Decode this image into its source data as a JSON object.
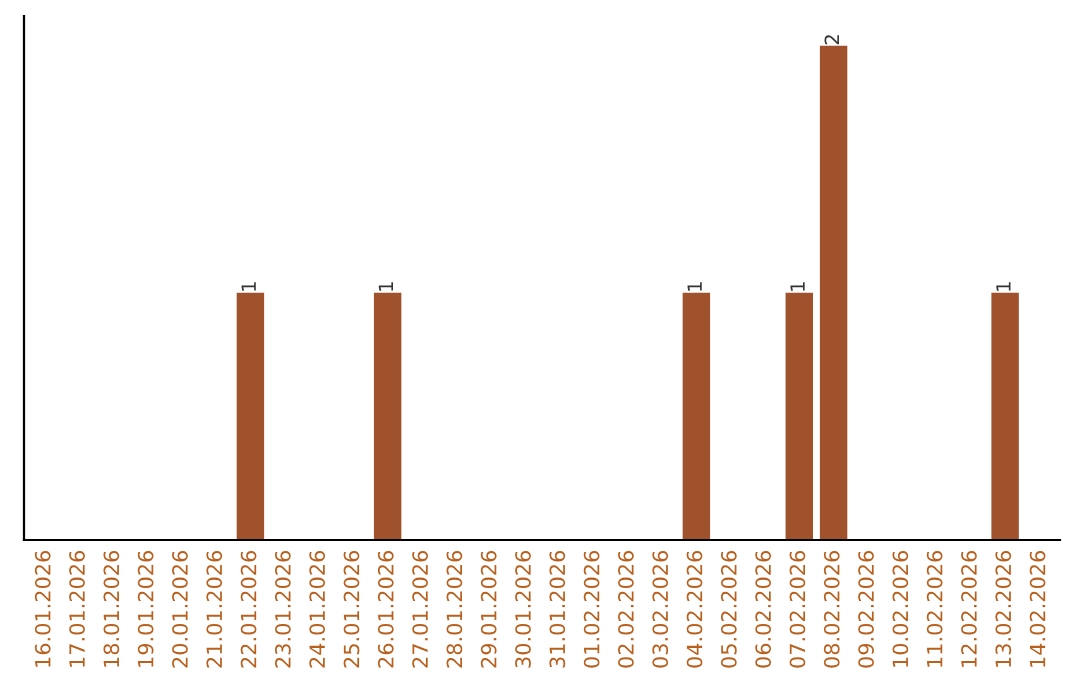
{
  "chart_data": {
    "type": "bar",
    "categories": [
      "16.01.2026",
      "17.01.2026",
      "18.01.2026",
      "19.01.2026",
      "20.01.2026",
      "21.01.2026",
      "22.01.2026",
      "23.01.2026",
      "24.01.2026",
      "25.01.2026",
      "26.01.2026",
      "27.01.2026",
      "28.01.2026",
      "29.01.2026",
      "30.01.2026",
      "31.01.2026",
      "01.02.2026",
      "02.02.2026",
      "03.02.2026",
      "04.02.2026",
      "05.02.2026",
      "06.02.2026",
      "07.02.2026",
      "08.02.2026",
      "09.02.2026",
      "10.02.2026",
      "11.02.2026",
      "12.02.2026",
      "13.02.2026",
      "14.02.2026"
    ],
    "values": [
      0,
      0,
      0,
      0,
      0,
      0,
      1,
      0,
      0,
      0,
      1,
      0,
      0,
      0,
      0,
      0,
      0,
      0,
      0,
      1,
      0,
      0,
      1,
      2,
      0,
      0,
      0,
      0,
      1,
      0
    ],
    "value_labels": [
      null,
      null,
      null,
      null,
      null,
      null,
      "1",
      null,
      null,
      null,
      "1",
      null,
      null,
      null,
      null,
      null,
      null,
      null,
      null,
      "1",
      null,
      null,
      "1",
      "2",
      null,
      null,
      null,
      null,
      "1",
      null
    ],
    "color": "#a0522d",
    "tick_labels": "x",
    "grid": false,
    "legend": false
  }
}
